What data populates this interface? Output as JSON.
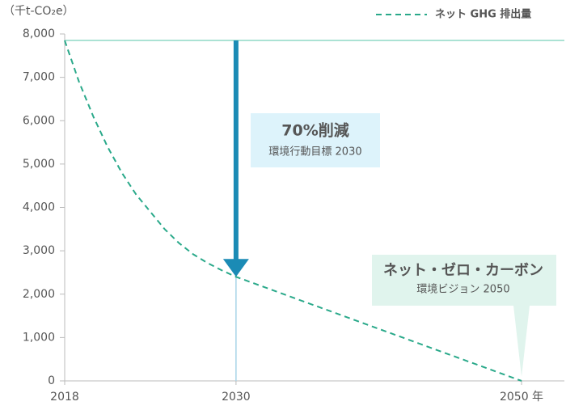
{
  "chart_data": {
    "type": "line",
    "y_label": "（千t-CO₂e）",
    "x": [
      2018,
      2019,
      2020,
      2021,
      2022,
      2023,
      2024,
      2025,
      2026,
      2027,
      2028,
      2029,
      2030,
      2035,
      2040,
      2045,
      2050
    ],
    "series": [
      {
        "name": "ネット GHG 排出量",
        "color": "#2aa98a",
        "dashed": true,
        "values": [
          7850,
          6900,
          6100,
          5400,
          4800,
          4300,
          3900,
          3500,
          3180,
          2920,
          2720,
          2550,
          2400,
          1800,
          1200,
          600,
          0
        ]
      }
    ],
    "reference_line": {
      "y": 7850,
      "color": "#8fd8c6"
    },
    "xlim": [
      2018,
      2053
    ],
    "xticks": [
      2018,
      2030,
      {
        "value": 2050,
        "label": "2050 年"
      }
    ],
    "ylim": [
      0,
      8000
    ],
    "yticks": [
      0,
      {
        "value": 1000,
        "label": "1,000"
      },
      {
        "value": 2000,
        "label": "2,000"
      },
      {
        "value": 3000,
        "label": "3,000"
      },
      {
        "value": 4000,
        "label": "4,000"
      },
      {
        "value": 5000,
        "label": "5,000"
      },
      {
        "value": 6000,
        "label": "6,000"
      },
      {
        "value": 7000,
        "label": "7,000"
      },
      {
        "value": 8000,
        "label": "8,000"
      }
    ],
    "annotations": [
      {
        "title": "70%削減",
        "subtitle": "環境行動目標 2030",
        "target_x": 2030,
        "color": "#1b8bb5",
        "box_color": "#ddf3fb"
      },
      {
        "title": "ネット・ゼロ・カーボン",
        "subtitle": "環境ビジョン 2050",
        "target_x": 2050,
        "box_color": "#e0f4ed"
      }
    ]
  }
}
